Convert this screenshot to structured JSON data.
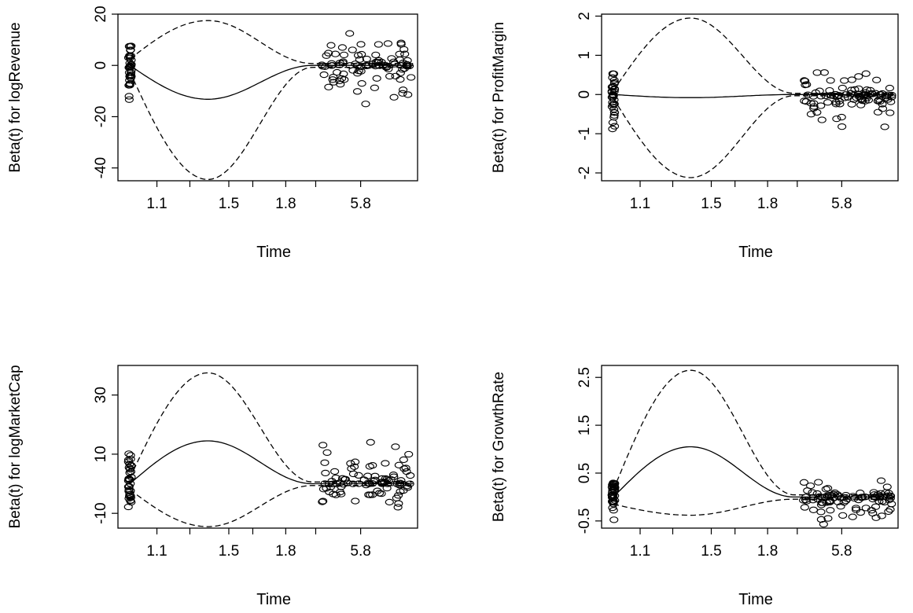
{
  "chart_data": [
    {
      "type": "scatter",
      "ylabel": "Beta(t) for logRevenue",
      "xlabel": "Time",
      "x_tick_labels": [
        "1.1",
        "1.5",
        "1.8",
        "5.8"
      ],
      "y_ticks": [
        20,
        0,
        -20,
        -40
      ],
      "ylim": [
        -45,
        20
      ],
      "band_peak": 17.5,
      "band_trough": -44.5,
      "mid_extreme": -13.2,
      "left_spread": [
        -14,
        11
      ],
      "right_spread": [
        -17,
        13
      ],
      "band_end_gap": 2.5
    },
    {
      "type": "scatter",
      "ylabel": "Beta(t) for ProfitMargin",
      "xlabel": "Time",
      "x_tick_labels": [
        "1.1",
        "1.5",
        "1.8",
        "5.8"
      ],
      "y_ticks": [
        2,
        1,
        0,
        -1,
        -2
      ],
      "ylim": [
        -2.2,
        2.05
      ],
      "band_peak": 1.95,
      "band_trough": -2.12,
      "mid_extreme": -0.08,
      "left_spread": [
        -0.9,
        0.7
      ],
      "right_spread": [
        -1.3,
        0.7
      ],
      "band_end_gap": 0.1
    },
    {
      "type": "scatter",
      "ylabel": "Beta(t) for logMarketCap",
      "xlabel": "Time",
      "x_tick_labels": [
        "1.1",
        "1.5",
        "1.8",
        "5.8"
      ],
      "y_ticks": [
        30,
        10,
        -10
      ],
      "ylim": [
        -15,
        40
      ],
      "band_peak": 37.5,
      "band_trough": -14.5,
      "mid_extreme": 14.5,
      "left_spread": [
        -11,
        14
      ],
      "right_spread": [
        -11,
        16
      ],
      "band_end_gap": 2
    },
    {
      "type": "scatter",
      "ylabel": "Beta(t) for GrowthRate",
      "xlabel": "Time",
      "x_tick_labels": [
        "1.1",
        "1.5",
        "1.8",
        "5.8"
      ],
      "y_ticks": [
        2.5,
        1.5,
        0.5,
        -0.5
      ],
      "ylim": [
        -0.65,
        2.75
      ],
      "band_peak": 2.65,
      "band_trough": -0.38,
      "mid_extreme": 1.05,
      "left_spread": [
        -0.6,
        0.5
      ],
      "right_spread": [
        -0.6,
        0.4
      ],
      "band_end_gap": 0.15
    }
  ]
}
